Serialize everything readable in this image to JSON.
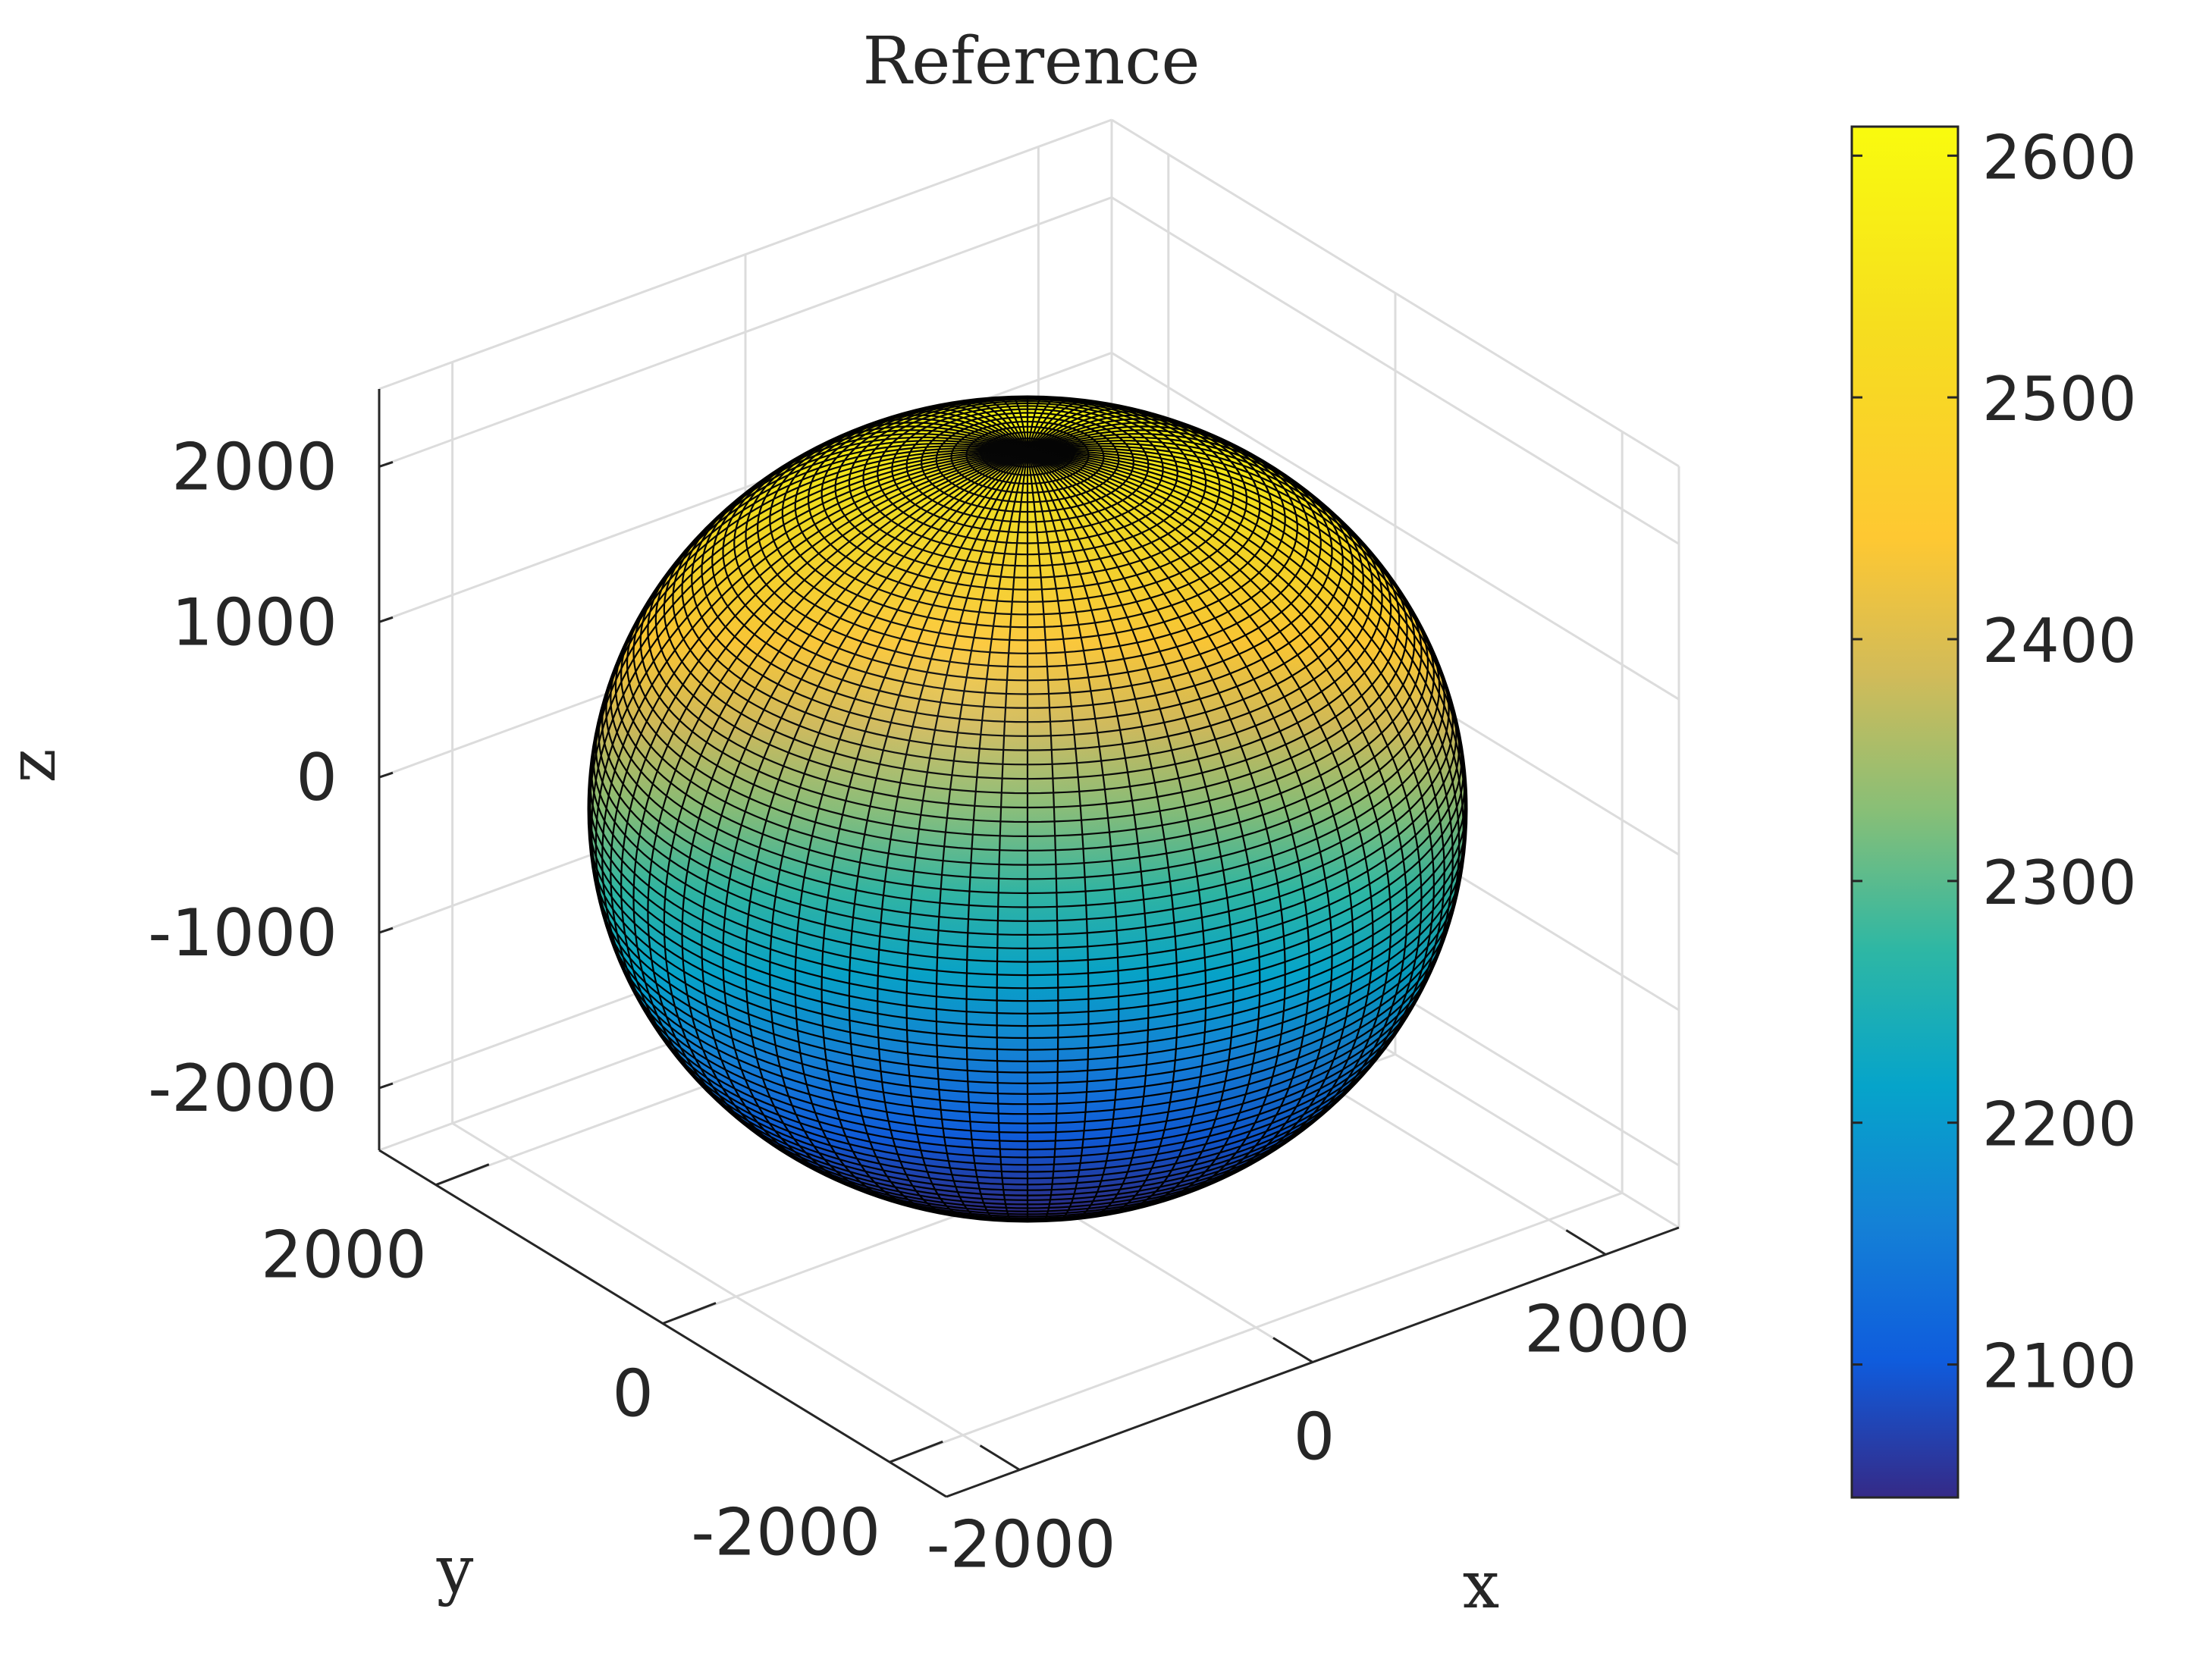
{
  "chart_data": {
    "type": "surface",
    "title": "Reference",
    "xlabel": "x",
    "ylabel": "y",
    "zlabel": "z",
    "x_ticks": [
      "-2000",
      "0",
      "2000"
    ],
    "y_ticks": [
      "-2000",
      "0",
      "2000"
    ],
    "z_ticks": [
      "-2000",
      "-1000",
      "0",
      "1000",
      "2000"
    ],
    "x_tick_values": [
      -2000,
      0,
      2000
    ],
    "y_tick_values": [
      -2000,
      0,
      2000
    ],
    "z_tick_values": [
      -2000,
      -1000,
      0,
      1000,
      2000
    ],
    "xlim": [
      -2500,
      2500
    ],
    "ylim": [
      -2500,
      2500
    ],
    "zlim": [
      -2400,
      2500
    ],
    "grid": true,
    "colormap": "parula",
    "colorbar": {
      "position": "right",
      "ticks": [
        "2600",
        "2500",
        "2400",
        "2300",
        "2200",
        "2100"
      ],
      "tick_values": [
        2600,
        2500,
        2400,
        2300,
        2200,
        2100
      ],
      "range": [
        2045,
        2612
      ]
    },
    "surface": {
      "shape": "sphere",
      "center": [
        0,
        0,
        0
      ],
      "radius_range": [
        2045,
        2612
      ],
      "color_by": "radius",
      "mesh_lines": true,
      "edge_color": "#000000"
    }
  }
}
